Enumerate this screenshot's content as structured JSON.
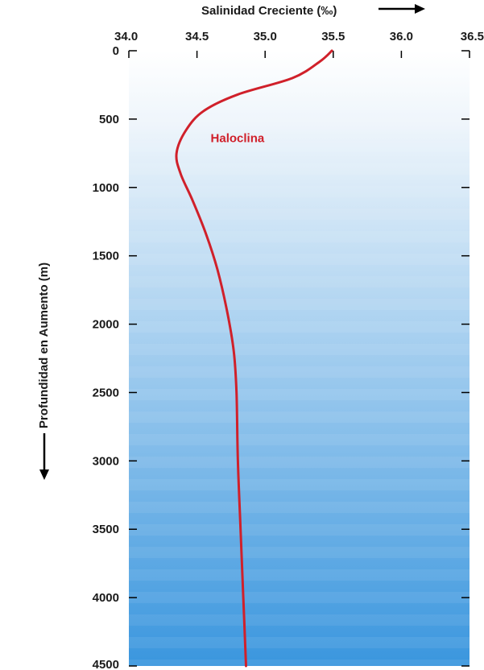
{
  "chart_data": {
    "type": "line",
    "xlabel": "Salinidad Creciente (‰)",
    "ylabel": "Profundidad en Aumento (m)",
    "xlim": [
      34.0,
      36.5
    ],
    "ylim": [
      0,
      4500
    ],
    "y_inverted": true,
    "x_axis_position": "top",
    "x_ticks": [
      34.0,
      34.5,
      35.0,
      35.5,
      36.0,
      36.5
    ],
    "x_tick_labels": [
      "34.0",
      "34.5",
      "35.0",
      "35.5",
      "36.0",
      "36.5"
    ],
    "y_ticks": [
      0,
      500,
      1000,
      1500,
      2000,
      2500,
      3000,
      3500,
      4000,
      4500
    ],
    "y_tick_labels": [
      "0",
      "500",
      "1000",
      "1500",
      "2000",
      "2500",
      "3000",
      "3500",
      "4000",
      "4500"
    ],
    "series": [
      {
        "color": "#d0202a",
        "points": [
          {
            "x": 35.49,
            "y": 0
          },
          {
            "x": 35.4,
            "y": 80
          },
          {
            "x": 35.2,
            "y": 200
          },
          {
            "x": 34.8,
            "y": 320
          },
          {
            "x": 34.55,
            "y": 440
          },
          {
            "x": 34.42,
            "y": 580
          },
          {
            "x": 34.35,
            "y": 750
          },
          {
            "x": 34.38,
            "y": 900
          },
          {
            "x": 34.47,
            "y": 1100
          },
          {
            "x": 34.57,
            "y": 1350
          },
          {
            "x": 34.65,
            "y": 1600
          },
          {
            "x": 34.72,
            "y": 1900
          },
          {
            "x": 34.77,
            "y": 2200
          },
          {
            "x": 34.79,
            "y": 2500
          },
          {
            "x": 34.8,
            "y": 3000
          },
          {
            "x": 34.82,
            "y": 3500
          },
          {
            "x": 34.84,
            "y": 4000
          },
          {
            "x": 34.86,
            "y": 4500
          }
        ]
      }
    ],
    "annotations": [
      {
        "text": "Haloclina",
        "x": 34.6,
        "y": 640,
        "color": "#d0202a"
      }
    ],
    "background_gradient": {
      "top": "#ffffff",
      "bottom": "#3a96de"
    },
    "tick_marks": "both-sides"
  }
}
